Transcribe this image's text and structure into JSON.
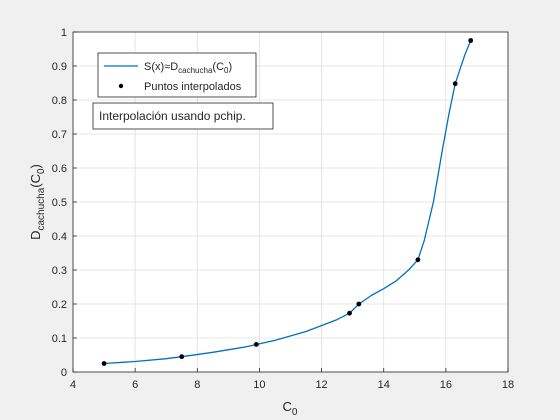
{
  "chart_data": {
    "type": "line",
    "xlabel": "C0",
    "ylabel": "Dcachucha(C0)",
    "xlim": [
      4,
      18
    ],
    "ylim": [
      0,
      1
    ],
    "x_ticks": [
      4,
      6,
      8,
      10,
      12,
      14,
      16,
      18
    ],
    "y_ticks": [
      0,
      0.1,
      0.2,
      0.3,
      0.4,
      0.5,
      0.6,
      0.7,
      0.8,
      0.9,
      1
    ],
    "x_tick_labels": [
      "4",
      "6",
      "8",
      "10",
      "12",
      "14",
      "16",
      "18"
    ],
    "y_tick_labels": [
      "0",
      "0.1",
      "0.2",
      "0.3",
      "0.4",
      "0.5",
      "0.6",
      "0.7",
      "0.8",
      "0.9",
      "1"
    ],
    "grid": true,
    "legend": {
      "placement": "top-left",
      "entries": [
        {
          "label_main": "S(x)≈D",
          "label_sub": "cachucha",
          "label_tail": "(C",
          "label_sub2": "0",
          "label_end": ")"
        },
        {
          "label": "Puntos interpolados"
        }
      ]
    },
    "annotation": "Interpolación usando pchip.",
    "series": [
      {
        "kind": "curve",
        "color": "#0072bd",
        "x": [
          5.0,
          6.0,
          7.0,
          7.5,
          8.5,
          9.5,
          9.9,
          10.5,
          11.5,
          12.5,
          12.9,
          13.2,
          13.6,
          14.0,
          14.4,
          14.8,
          15.1,
          15.3,
          15.6,
          15.9,
          16.1,
          16.3,
          16.6,
          16.8
        ],
        "y": [
          0.025,
          0.031,
          0.039,
          0.045,
          0.058,
          0.073,
          0.081,
          0.093,
          0.119,
          0.154,
          0.173,
          0.2,
          0.225,
          0.245,
          0.268,
          0.3,
          0.33,
          0.385,
          0.5,
          0.66,
          0.76,
          0.848,
          0.93,
          0.975
        ]
      },
      {
        "kind": "points",
        "color": "#000000",
        "x": [
          5.0,
          7.5,
          9.9,
          12.9,
          13.2,
          15.1,
          16.3,
          16.8
        ],
        "y": [
          0.025,
          0.045,
          0.081,
          0.173,
          0.2,
          0.33,
          0.848,
          0.975
        ]
      }
    ]
  }
}
